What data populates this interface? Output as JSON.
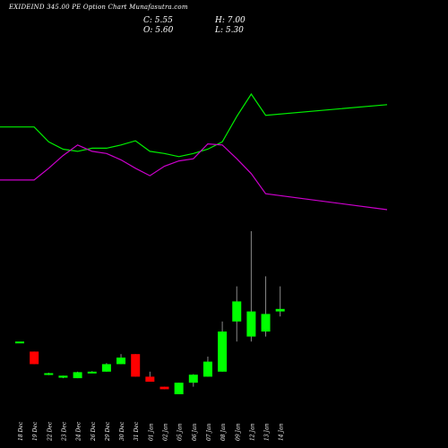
{
  "header": {
    "title": "EXIDEIND 345.00 PE Option Chart Munafasutra.com",
    "close_text": "C: 5.55",
    "open_text": "O: 5.60",
    "high_text": "H: 7.00",
    "low_text": "L: 5.30"
  },
  "chart_data": {
    "type": "candlestick",
    "title": "EXIDEIND 345.00 PE Option Chart Munafasutra.com",
    "categories": [
      "18 Dec",
      "19 Dec",
      "22 Dec",
      "23 Dec",
      "24 Dec",
      "26 Dec",
      "29 Dec",
      "30 Dec",
      "31 Dec",
      "01 Jan",
      "02 Jan",
      "05 Jan",
      "06 Jan",
      "07 Jan",
      "08 Jan",
      "09 Jan",
      "12 Jan",
      "13 Jan",
      "14 Jan"
    ],
    "candles": [
      {
        "open": 3.3,
        "high": 3.3,
        "low": 3.3,
        "close": 3.3
      },
      {
        "open": 3.1,
        "high": 3.1,
        "low": 2.85,
        "close": 2.85
      },
      {
        "open": 2.65,
        "high": 2.68,
        "low": 2.63,
        "close": 2.67
      },
      {
        "open": 2.58,
        "high": 2.62,
        "low": 2.57,
        "close": 2.62
      },
      {
        "open": 2.57,
        "high": 2.7,
        "low": 2.57,
        "close": 2.69
      },
      {
        "open": 2.68,
        "high": 2.71,
        "low": 2.67,
        "close": 2.7
      },
      {
        "open": 2.7,
        "high": 2.87,
        "low": 2.7,
        "close": 2.85
      },
      {
        "open": 2.85,
        "high": 3.05,
        "low": 2.85,
        "close": 2.98
      },
      {
        "open": 3.05,
        "high": 3.05,
        "low": 2.6,
        "close": 2.6
      },
      {
        "open": 2.6,
        "high": 2.7,
        "low": 2.5,
        "close": 2.5
      },
      {
        "open": 2.4,
        "high": 2.4,
        "low": 2.35,
        "close": 2.35
      },
      {
        "open": 2.25,
        "high": 2.48,
        "low": 2.25,
        "close": 2.48
      },
      {
        "open": 2.48,
        "high": 2.65,
        "low": 2.4,
        "close": 2.64
      },
      {
        "open": 2.6,
        "high": 3.0,
        "low": 2.6,
        "close": 2.9
      },
      {
        "open": 2.7,
        "high": 3.7,
        "low": 2.7,
        "close": 3.5
      },
      {
        "open": 3.7,
        "high": 4.4,
        "low": 3.3,
        "close": 4.1
      },
      {
        "open": 3.4,
        "high": 5.5,
        "low": 3.3,
        "close": 3.9
      },
      {
        "open": 3.5,
        "high": 4.6,
        "low": 3.4,
        "close": 3.85
      },
      {
        "open": 3.9,
        "high": 4.4,
        "low": 3.8,
        "close": 3.95
      }
    ],
    "lines": [
      {
        "color": "#00ee00",
        "values": [
          100,
          100,
          86,
          79,
          77,
          80,
          80,
          83,
          87,
          77,
          75,
          72,
          75,
          79,
          86,
          110,
          131,
          111,
          121
        ]
      },
      {
        "color": "#cc00cc",
        "values": [
          50,
          50,
          61,
          73,
          83,
          77,
          75,
          69,
          61,
          54,
          63,
          68,
          70,
          84,
          83,
          70,
          56,
          37,
          22
        ]
      }
    ],
    "colors": {
      "up": "#00ff00",
      "down": "#ff0000",
      "background": "#000000"
    }
  }
}
